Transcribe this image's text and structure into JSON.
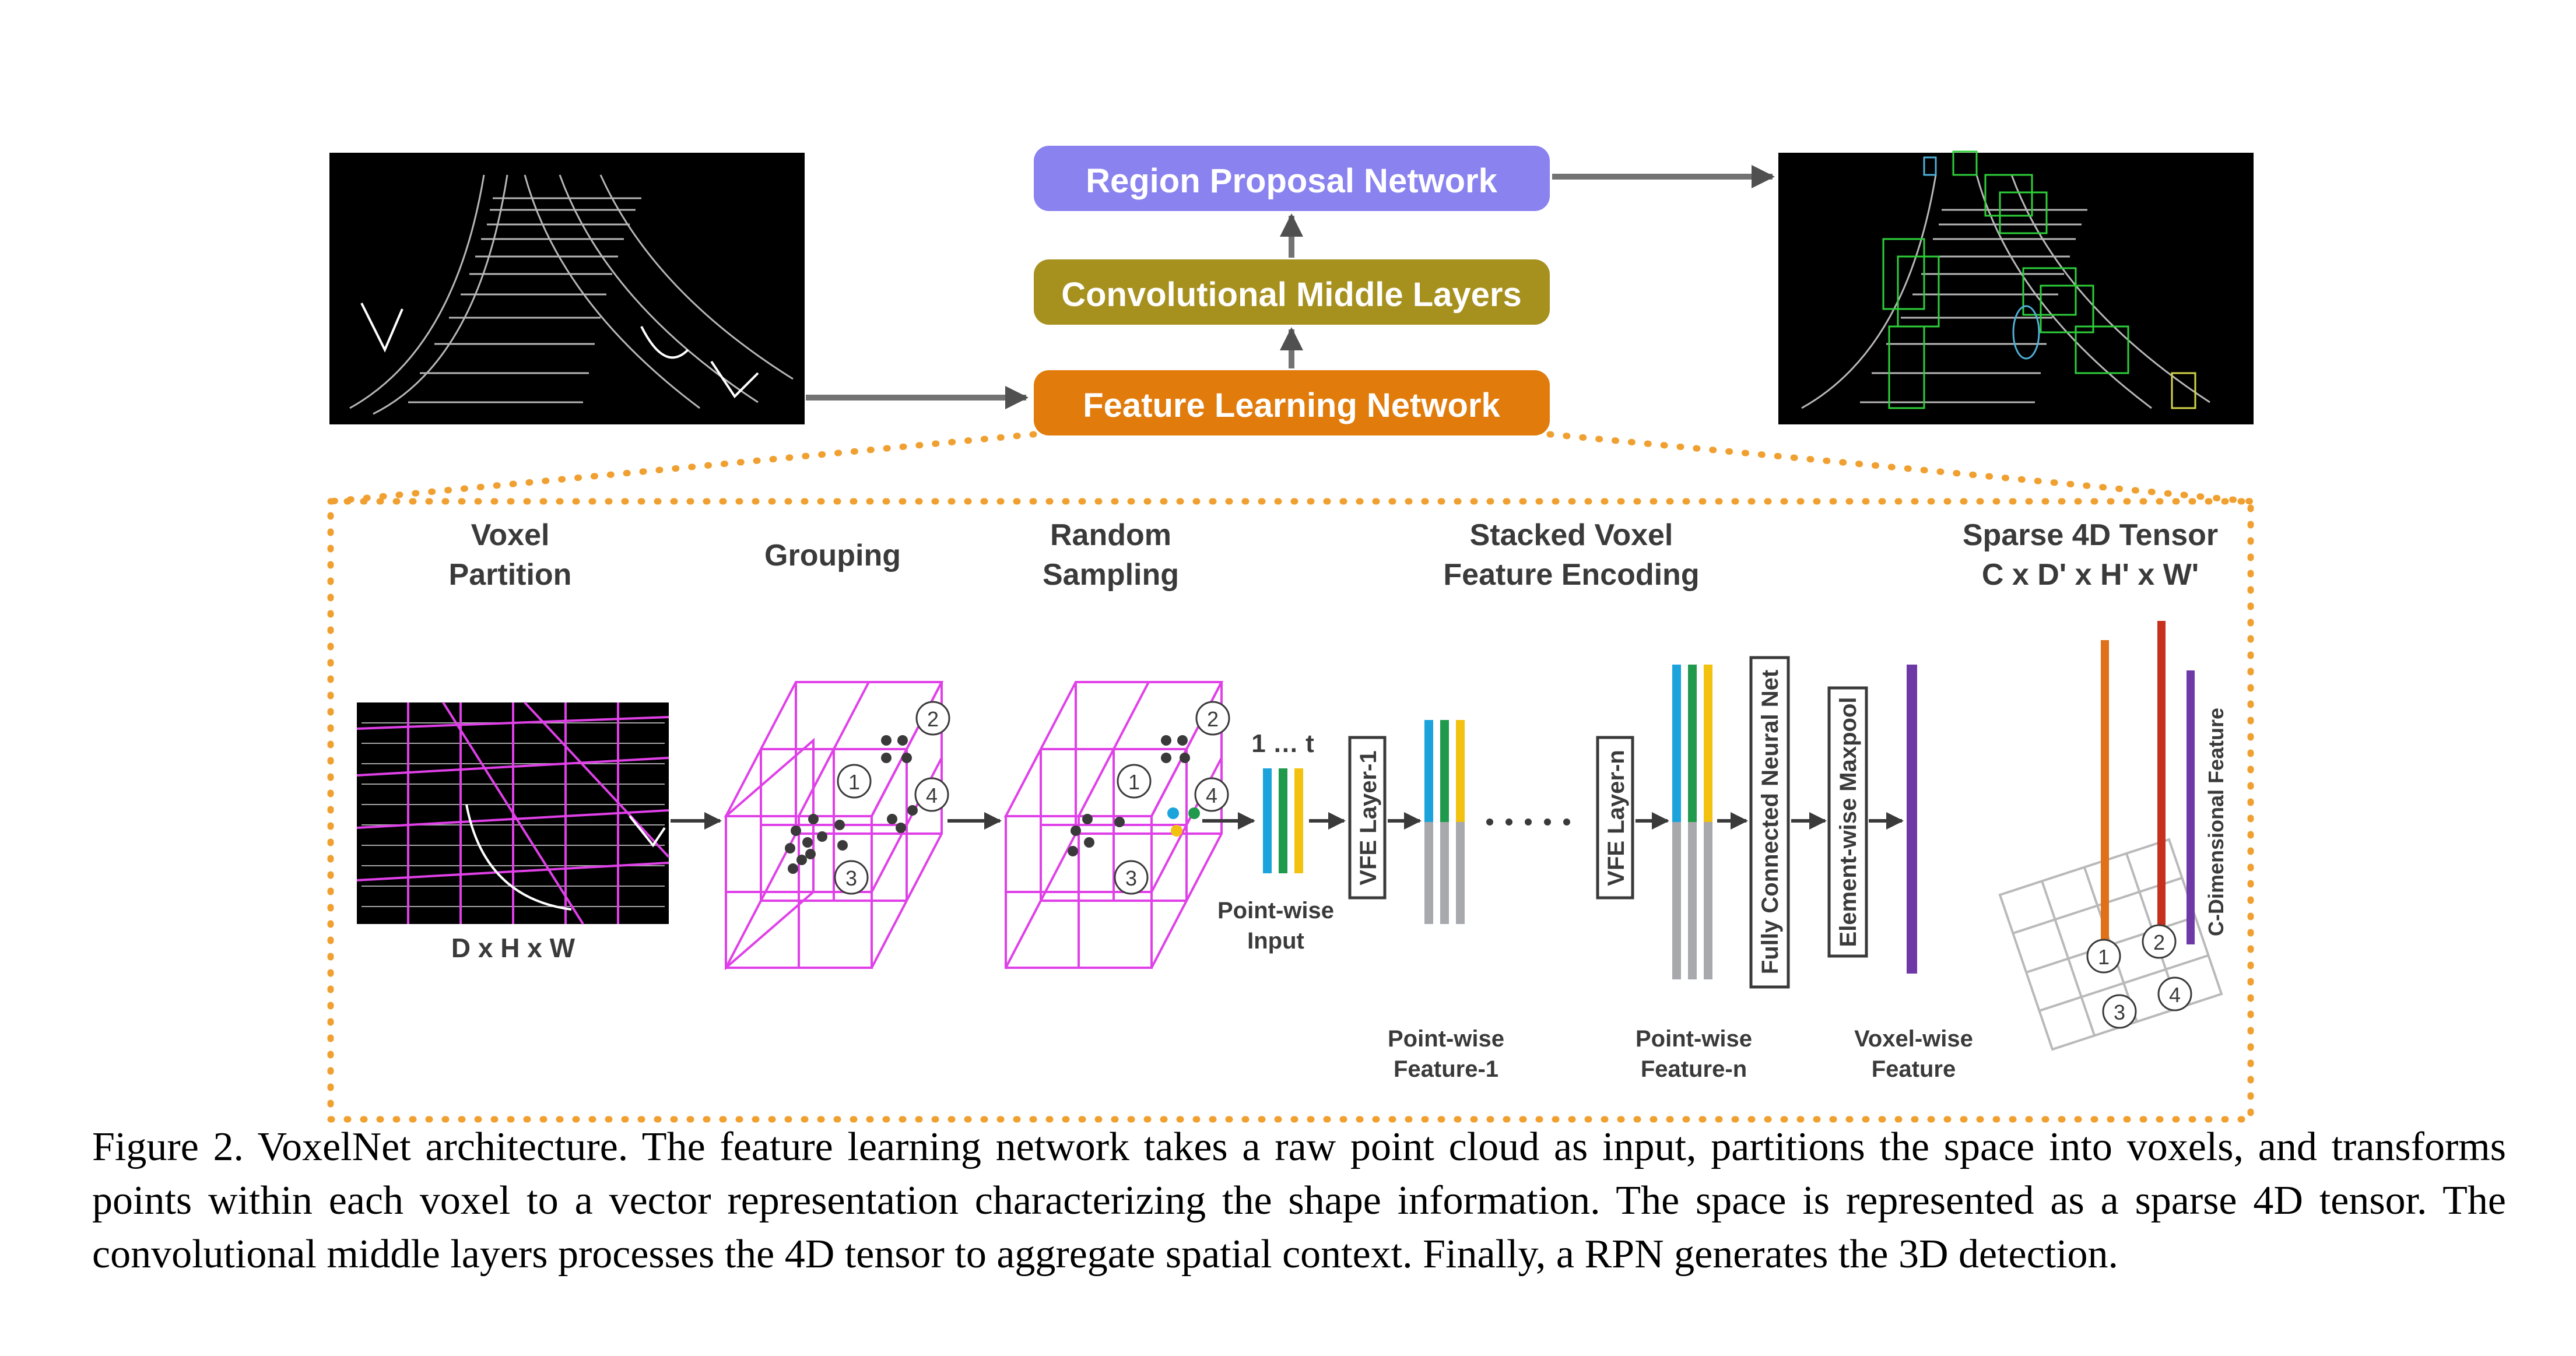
{
  "pipeline": {
    "rpn_label": "Region Proposal Network",
    "cml_label": "Convolutional Middle Layers",
    "fln_label": "Feature Learning Network"
  },
  "stages": {
    "voxel_partition": [
      "Voxel",
      "Partition"
    ],
    "grouping": "Grouping",
    "random_sampling": [
      "Random",
      "Sampling"
    ],
    "svfe": [
      "Stacked Voxel",
      "Feature Encoding"
    ],
    "sparse_tensor": [
      "Sparse 4D Tensor",
      "C x D' x H' x W'"
    ]
  },
  "labels": {
    "dhw": "D x H x W",
    "one_t": "1 … t",
    "pointwise_input": [
      "Point-wise",
      "Input"
    ],
    "vfe1": "VFE Layer-1",
    "vfen": "VFE Layer-n",
    "fcn": "Fully Connected Neural Net",
    "maxpool": "Element-wise Maxpool",
    "pw_feature1": [
      "Point-wise",
      "Feature-1"
    ],
    "pw_featuren": [
      "Point-wise",
      "Feature-n"
    ],
    "voxel_feature": [
      "Voxel-wise",
      "Feature"
    ],
    "c_dim": "C-Dimensional Feature",
    "circle_labels": [
      "1",
      "2",
      "3",
      "4"
    ]
  },
  "caption": "Figure 2. VoxelNet architecture. The feature learning network takes a raw point cloud as input, partitions the space into voxels, and transforms points within each voxel to a vector representation characterizing the shape information. The space is represented as a sparse 4D tensor. The convolutional middle layers processes the 4D tensor to aggregate spatial context. Finally, a RPN generates the 3D detection.",
  "colors": {
    "rpn": "#8a82ef",
    "cml": "#a6901e",
    "fln": "#e07b0c",
    "voxel_grid": "#e040e8",
    "blue": "#1ba3dc",
    "green": "#1f9a4c",
    "yellow": "#f2c20f",
    "gray": "#a7a9ac",
    "purple": "#6e38a6",
    "orange": "#e0701a",
    "red": "#c8301e"
  }
}
